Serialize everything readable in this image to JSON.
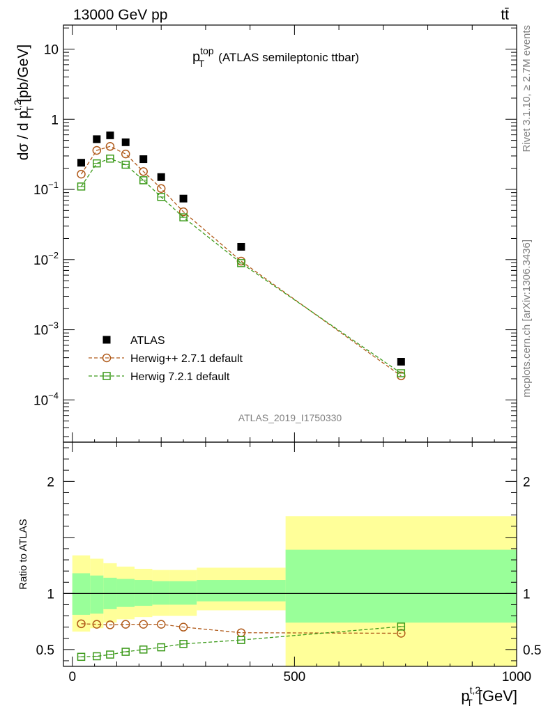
{
  "header": {
    "left": "13000 GeV pp",
    "right": "tt̄"
  },
  "side_labels": {
    "rivet": "Rivet 3.1.10, ≥ 2.7M events",
    "mcplots": "mcplots.cern.ch [arXiv:1306.3436]"
  },
  "chart_data": [
    {
      "type": "scatter",
      "panel": "main",
      "title": {
        "base": "p",
        "sup": "top",
        "sub": "T",
        "rest": "(ATLAS semileptonic ttbar)"
      },
      "ylabel": {
        "base": "dσ / d p",
        "sup": "t,2",
        "sub": "T",
        "rest": "[pb/GeV]"
      },
      "yscale": "log",
      "xlim": [
        -20,
        1000
      ],
      "ylim": [
        2.5e-05,
        22
      ],
      "y_ticks": [
        {
          "value": 0.0001,
          "base": "10",
          "exp": "−4"
        },
        {
          "value": 0.001,
          "base": "10",
          "exp": "−3"
        },
        {
          "value": 0.01,
          "base": "10",
          "exp": "−2"
        },
        {
          "value": 0.1,
          "base": "10",
          "exp": "−1"
        },
        {
          "value": 1,
          "base": "1",
          "exp": ""
        },
        {
          "value": 10,
          "base": "10",
          "exp": ""
        }
      ],
      "watermark": "ATLAS_2019_I1750330",
      "legend_position": "lower-left",
      "x": [
        20,
        55,
        85,
        120,
        160,
        200,
        250,
        380,
        740
      ],
      "series": [
        {
          "name": "ATLAS",
          "color": "#000000",
          "marker": "filled-square",
          "values": [
            0.24,
            0.52,
            0.59,
            0.47,
            0.27,
            0.15,
            0.074,
            0.0152,
            0.00035
          ]
        },
        {
          "name": "Herwig++ 2.7.1 default",
          "color": "#b05a1a",
          "marker": "open-circle",
          "line": "dashed",
          "values": [
            0.165,
            0.36,
            0.41,
            0.32,
            0.18,
            0.103,
            0.048,
            0.0095,
            0.00022
          ]
        },
        {
          "name": "Herwig 7.2.1 default",
          "color": "#3c9a1a",
          "marker": "open-square",
          "line": "dashed",
          "values": [
            0.11,
            0.235,
            0.275,
            0.225,
            0.135,
            0.078,
            0.04,
            0.0089,
            0.00024
          ]
        }
      ]
    },
    {
      "type": "scatter",
      "panel": "ratio",
      "ylabel": "Ratio to ATLAS",
      "xlabel": {
        "base": "p",
        "sup": "t,2",
        "sub": "T",
        "rest": "[GeV]"
      },
      "xlim": [
        -20,
        1000
      ],
      "ylim": [
        0.35,
        2.35
      ],
      "x_ticks": [
        0,
        500,
        1000
      ],
      "y_ticks": [
        0.5,
        1,
        2
      ],
      "reference_line": 1,
      "bands": {
        "edges": [
          0,
          40,
          70,
          100,
          140,
          180,
          220,
          280,
          480,
          1000
        ],
        "inner": [
          [
            0.81,
            1.18
          ],
          [
            0.82,
            1.16
          ],
          [
            0.86,
            1.14
          ],
          [
            0.88,
            1.13
          ],
          [
            0.89,
            1.12
          ],
          [
            0.9,
            1.11
          ],
          [
            0.9,
            1.11
          ],
          [
            0.93,
            1.12
          ],
          [
            0.74,
            1.39
          ]
        ],
        "outer": [
          [
            0.66,
            1.34
          ],
          [
            0.69,
            1.31
          ],
          [
            0.74,
            1.27
          ],
          [
            0.77,
            1.24
          ],
          [
            0.79,
            1.22
          ],
          [
            0.8,
            1.21
          ],
          [
            0.8,
            1.21
          ],
          [
            0.85,
            1.23
          ],
          [
            -0.2,
            1.69
          ]
        ],
        "inner_color": "#99ff99",
        "outer_color": "#ffff99"
      },
      "x": [
        20,
        55,
        85,
        120,
        160,
        200,
        250,
        380,
        740
      ],
      "series": [
        {
          "name": "Herwig++ 2.7.1 default",
          "color": "#b05a1a",
          "marker": "open-circle",
          "values": [
            0.73,
            0.725,
            0.72,
            0.725,
            0.725,
            0.725,
            0.7,
            0.65,
            0.645
          ]
        },
        {
          "name": "Herwig 7.2.1 default",
          "color": "#3c9a1a",
          "marker": "open-square",
          "values": [
            0.435,
            0.44,
            0.455,
            0.48,
            0.5,
            0.52,
            0.55,
            0.585,
            0.705
          ]
        }
      ]
    }
  ]
}
